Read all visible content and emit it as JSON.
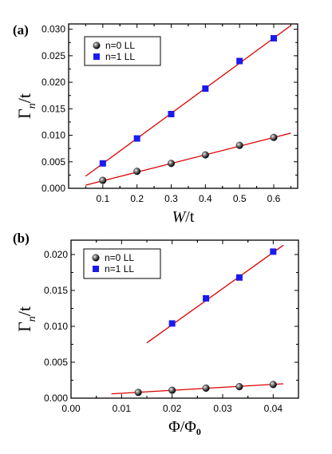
{
  "chart_data": [
    {
      "type": "scatter",
      "panel_label": "(a)",
      "xlabel": {
        "main": "W",
        "rest": "/t"
      },
      "ylabel": {
        "main": "Γ",
        "sub": "n",
        "rest": "/t"
      },
      "xlim": [
        0.0,
        0.67
      ],
      "ylim": [
        0.0,
        0.031
      ],
      "x_ticks": [
        0.1,
        0.2,
        0.3,
        0.4,
        0.5,
        0.6
      ],
      "x_tick_labels": [
        "0.1",
        "0.2",
        "0.3",
        "0.4",
        "0.5",
        "0.6"
      ],
      "y_ticks": [
        0.0,
        0.005,
        0.01,
        0.015,
        0.02,
        0.025,
        0.03
      ],
      "y_tick_labels": [
        "0.000",
        "0.005",
        "0.010",
        "0.015",
        "0.020",
        "0.025",
        "0.030"
      ],
      "legend_position": "top-left",
      "series": [
        {
          "name": "n=0 LL",
          "marker": "sphere",
          "color": "#000000",
          "x": [
            0.1,
            0.2,
            0.3,
            0.4,
            0.5,
            0.6
          ],
          "y": [
            0.0015,
            0.0032,
            0.0047,
            0.0063,
            0.0081,
            0.0096
          ],
          "fit": {
            "x": [
              0.05,
              0.65
            ],
            "y": [
              0.0006,
              0.0104
            ],
            "color": "#dd0000"
          }
        },
        {
          "name": "n=1 LL",
          "marker": "square",
          "color": "#1a1aee",
          "x": [
            0.1,
            0.2,
            0.3,
            0.4,
            0.5,
            0.6
          ],
          "y": [
            0.0047,
            0.0094,
            0.014,
            0.0188,
            0.024,
            0.0283
          ],
          "fit": {
            "x": [
              0.05,
              0.65
            ],
            "y": [
              0.0023,
              0.0307
            ],
            "color": "#dd0000"
          }
        }
      ]
    },
    {
      "type": "scatter",
      "panel_label": "(b)",
      "xlabel": {
        "main": "Φ/Φ",
        "sub": "0",
        "rest": ""
      },
      "ylabel": {
        "main": "Γ",
        "sub": "n",
        "rest": "/t"
      },
      "xlim": [
        0.0,
        0.045
      ],
      "ylim": [
        0.0,
        0.022
      ],
      "x_ticks": [
        0.0,
        0.01,
        0.02,
        0.03,
        0.04
      ],
      "x_tick_labels": [
        "0.00",
        "0.01",
        "0.02",
        "0.03",
        "0.04"
      ],
      "y_ticks": [
        0.0,
        0.005,
        0.01,
        0.015,
        0.02
      ],
      "y_tick_labels": [
        "0.000",
        "0.005",
        "0.010",
        "0.015",
        "0.020"
      ],
      "legend_position": "top-left",
      "series": [
        {
          "name": "n=0 LL",
          "marker": "sphere",
          "color": "#000000",
          "x": [
            0.0133,
            0.02,
            0.0267,
            0.0333,
            0.04
          ],
          "y": [
            0.0008,
            0.0011,
            0.0014,
            0.0016,
            0.0019
          ],
          "fit": {
            "x": [
              0.008,
              0.042
            ],
            "y": [
              0.0006,
              0.002
            ],
            "color": "#dd0000"
          }
        },
        {
          "name": "n=1 LL",
          "marker": "square",
          "color": "#1a1aee",
          "x": [
            0.02,
            0.0267,
            0.0333,
            0.04
          ],
          "y": [
            0.0104,
            0.0139,
            0.0168,
            0.0204
          ],
          "fit": {
            "x": [
              0.015,
              0.042
            ],
            "y": [
              0.0077,
              0.0213
            ],
            "color": "#dd0000"
          }
        }
      ]
    }
  ]
}
